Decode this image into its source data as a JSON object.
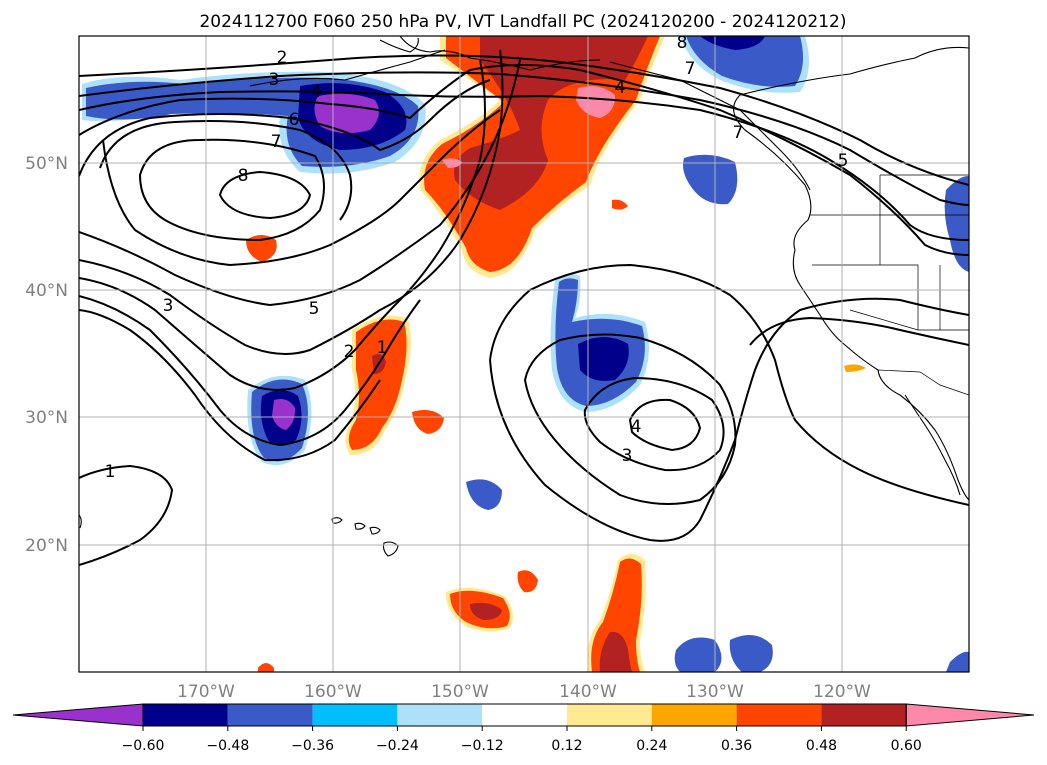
{
  "title": "2024112700 F060 250 hPa PV, IVT Landfall PC (2024120200 - 2024120212)",
  "latitude_labels": [
    "50°N",
    "40°N",
    "30°N",
    "20°N"
  ],
  "longitude_labels": [
    "170°W",
    "160°W",
    "150°W",
    "140°W",
    "130°W",
    "120°W"
  ],
  "colorbar": {
    "tick_labels": [
      "−0.60",
      "−0.48",
      "−0.36",
      "−0.24",
      "−0.12",
      "0.12",
      "0.24",
      "0.36",
      "0.48",
      "0.60"
    ],
    "colors": [
      "#9932CC",
      "#00008B",
      "#3A5BC7",
      "#00BFFF",
      "#ADE1FA",
      "#FFFFFF",
      "#FFE991",
      "#FFA500",
      "#FF4500",
      "#B22222",
      "#FF88AA"
    ]
  },
  "contour_labels": [
    "2",
    "3",
    "4",
    "6",
    "7",
    "8",
    "7",
    "5",
    "4",
    "3",
    "5",
    "2",
    "1",
    "3",
    "4",
    "1",
    "8",
    "7"
  ],
  "colors": {
    "positive_shading": [
      "#FFE991",
      "#FFA500",
      "#FF4500",
      "#B22222",
      "#FF88AA"
    ],
    "negative_shading": [
      "#ADE1FA",
      "#00BFFF",
      "#3A5BC7",
      "#00008B",
      "#9932CC"
    ],
    "grid": "#b0b0b0",
    "axis_label": "#808080"
  }
}
